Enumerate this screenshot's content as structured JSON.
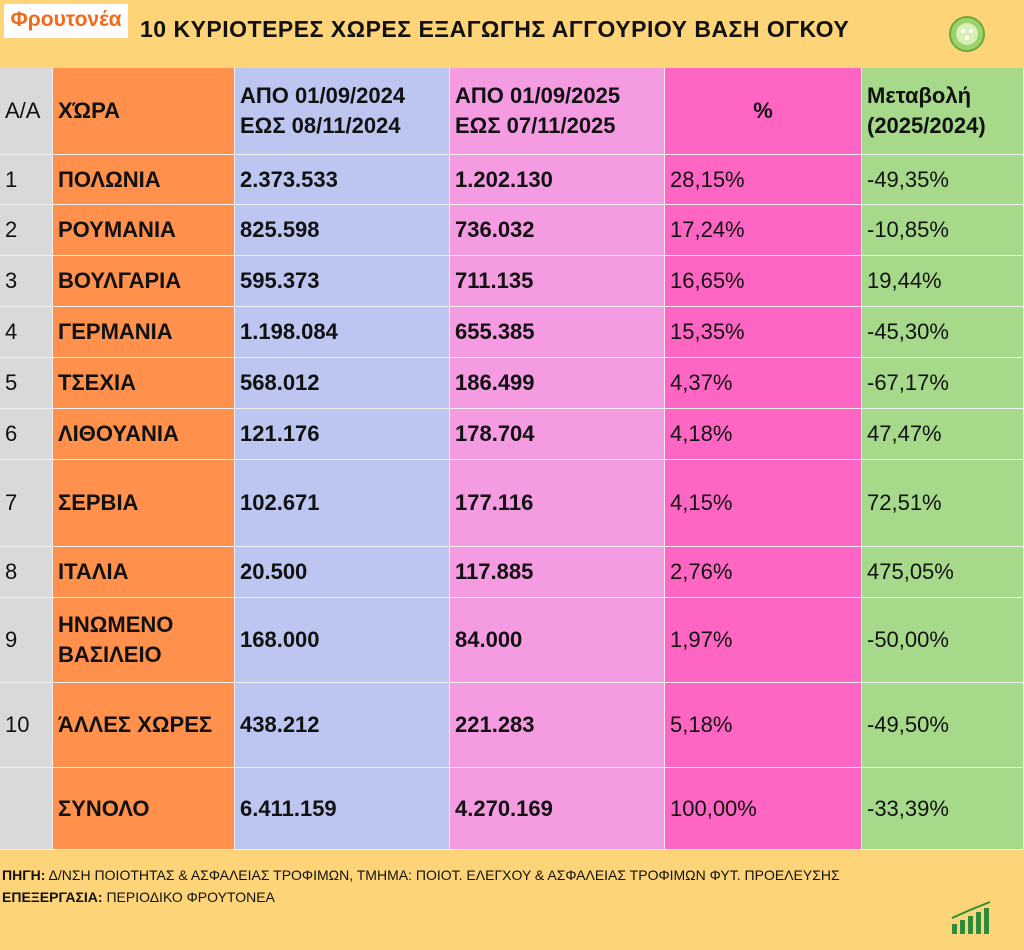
{
  "header": {
    "logo": "Φρουτονέα",
    "title": "10 ΚΥΡΙΟΤΕΡΕΣ ΧΩΡΕΣ ΕΞΑΓΩΓΗΣ ΑΓΓΟΥΡΙΟΥ ΒΑΣΗ ΟΓΚΟΥ"
  },
  "table": {
    "columns": [
      [
        "Α/Α"
      ],
      [
        "ΧΏΡΑ"
      ],
      [
        "ΑΠΟ 01/09/2024",
        "ΕΩΣ  08/11/2024"
      ],
      [
        "ΑΠΟ 01/09/2025",
        "ΕΩΣ  07/11/2025"
      ],
      [
        "%"
      ],
      [
        "Μεταβολή",
        "(2025/2024)"
      ]
    ],
    "rows": [
      [
        "1",
        "ΠΟΛΩΝΙΑ",
        "2.373.533",
        "1.202.130",
        "28,15%",
        "-49,35%"
      ],
      [
        "2",
        "ΡΟΥΜΑΝΙΑ",
        "825.598",
        "736.032",
        "17,24%",
        "-10,85%"
      ],
      [
        "3",
        "ΒΟΥΛΓΑΡΙΑ",
        "595.373",
        "711.135",
        "16,65%",
        "19,44%"
      ],
      [
        "4",
        "ΓΕΡΜΑΝΙΑ",
        "1.198.084",
        "655.385",
        "15,35%",
        "-45,30%"
      ],
      [
        "5",
        "ΤΣΕΧΙΑ",
        "568.012",
        "186.499",
        "4,37%",
        "-67,17%"
      ],
      [
        "6",
        "ΛΙΘΟΥΑΝΙΑ",
        "121.176",
        "178.704",
        "4,18%",
        "47,47%"
      ],
      [
        "7",
        "ΣΕΡΒΙΑ",
        "102.671",
        "177.116",
        "4,15%",
        "72,51%"
      ],
      [
        "8",
        "ΙΤΑΛΙΑ",
        "20.500",
        "117.885",
        "2,76%",
        "475,05%"
      ],
      [
        "9",
        "ΗΝΩΜΕΝΟ ΒΑΣΙΛΕΙΟ",
        "168.000",
        "84.000",
        "1,97%",
        "-50,00%"
      ],
      [
        "10",
        "ΆΛΛΕΣ ΧΩΡΕΣ",
        "438.212",
        "221.283",
        "5,18%",
        "-49,50%"
      ],
      [
        null,
        "ΣΥΝΟΛΟ",
        "6.411.159",
        "4.270.169",
        "100,00%",
        "-33,39%"
      ]
    ]
  },
  "footer": {
    "source_label": "ΠΗΓΗ:",
    "source": "Δ/ΝΣΗ ΠΟΙΟΤΗΤΑΣ & ΑΣΦΑΛΕΙΑΣ ΤΡΟΦΙΜΩΝ, ΤΜΗΜΑ: ΠΟΙΟΤ. ΕΛΕΓΧΟΥ & ΑΣΦΑΛΕΙΑΣ ΤΡΟΦΙΜΩΝ ΦΥΤ. ΠΡΟΕΛΕΥΣΗΣ",
    "processing_label": "ΕΠΕΞΕΡΓΑΣΙΑ:",
    "processing": "ΠΕΡΙΟΔΙΚΟ ΦΡΟΥΤΟΝΕΑ"
  }
}
